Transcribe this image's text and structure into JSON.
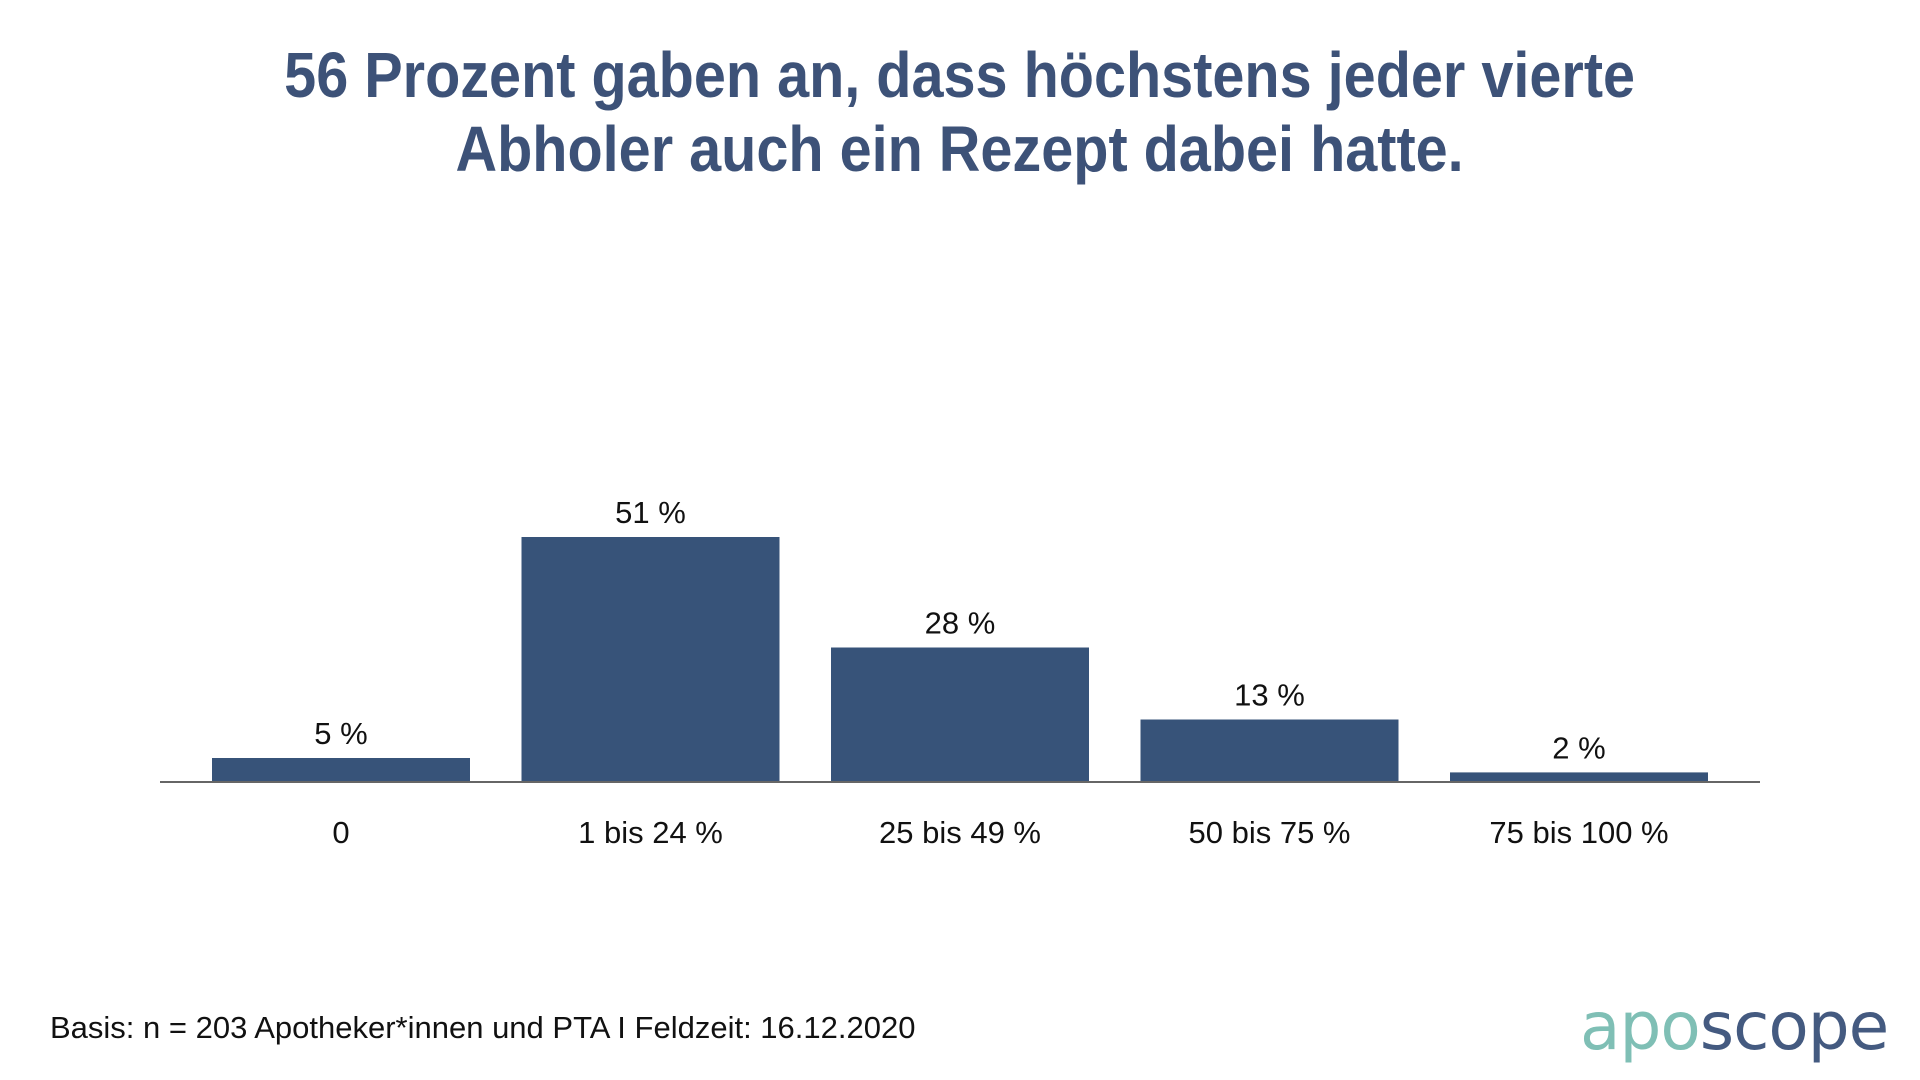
{
  "title": {
    "line1": "56 Prozent gaben an, dass höchstens jeder vierte",
    "line2": "Abholer auch ein Rezept dabei hatte."
  },
  "footnote": "Basis: n = 203 Apotheker*innen und PTA I Feldzeit: 16.12.2020",
  "logo": {
    "part1": "apo",
    "part2": "scope",
    "accent_color": "#7fbfb5",
    "main_color": "#445a80"
  },
  "colors": {
    "bar": "#375379",
    "title": "#3d5278",
    "axis": "#666666",
    "text": "#111111"
  },
  "chart_data": {
    "type": "bar",
    "title": "56 Prozent gaben an, dass höchstens jeder vierte Abholer auch ein Rezept dabei hatte.",
    "xlabel": "",
    "ylabel": "",
    "categories": [
      "0",
      "1 bis 24 %",
      "25 bis 49 %",
      "50 bis 75 %",
      "75 bis 100 %"
    ],
    "values": [
      5,
      51,
      28,
      13,
      2
    ],
    "value_labels": [
      "5 %",
      "51 %",
      "28 %",
      "13 %",
      "2 %"
    ],
    "ylim": [
      0,
      51
    ],
    "grid": false,
    "legend": "none"
  }
}
